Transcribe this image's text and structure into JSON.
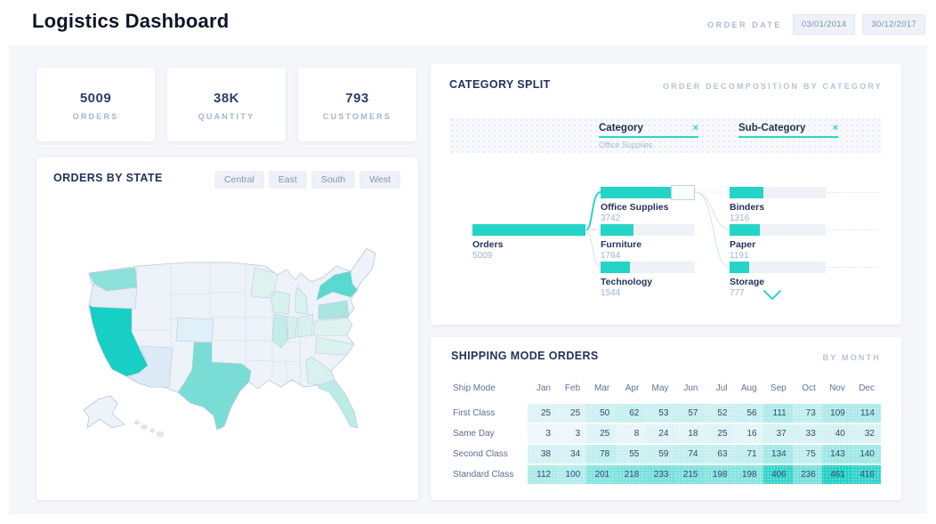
{
  "header": {
    "title": "Logistics Dashboard",
    "order_date_label": "ORDER DATE",
    "date_start": "03/01/2014",
    "date_end": "30/12/2017"
  },
  "kpis": [
    {
      "value": "5009",
      "label": "ORDERS"
    },
    {
      "value": "38K",
      "label": "QUANTITY"
    },
    {
      "value": "793",
      "label": "CUSTOMERS"
    }
  ],
  "orders_by_state": {
    "title": "ORDERS BY STATE",
    "region_filters": [
      "Central",
      "East",
      "South",
      "West"
    ],
    "map": {
      "base_fill": "#edf3f9",
      "border_color": "#b9c7dd",
      "states": [
        {
          "id": "WA",
          "name": "Washington",
          "fill": "#8ce1da"
        },
        {
          "id": "OR",
          "name": "Oregon",
          "fill": "#e4eef7"
        },
        {
          "id": "CA",
          "name": "California",
          "fill": "#17cfc4"
        },
        {
          "id": "AZ",
          "name": "Arizona",
          "fill": "#dcebf5"
        },
        {
          "id": "CO",
          "name": "Colorado",
          "fill": "#e0f0f8"
        },
        {
          "id": "TX",
          "name": "Texas",
          "fill": "#79ddd5"
        },
        {
          "id": "MN",
          "name": "Minnesota",
          "fill": "#def3f0"
        },
        {
          "id": "WI",
          "name": "Wisconsin",
          "fill": "#d7f1ee"
        },
        {
          "id": "MI",
          "name": "Michigan",
          "fill": "#d9f2ef"
        },
        {
          "id": "IL",
          "name": "Illinois",
          "fill": "#c4ede9"
        },
        {
          "id": "IN",
          "name": "Indiana",
          "fill": "#d5f0ed"
        },
        {
          "id": "OH",
          "name": "Ohio",
          "fill": "#d7f1ee"
        },
        {
          "id": "PA",
          "name": "Pennsylvania",
          "fill": "#a9e6e0"
        },
        {
          "id": "NY",
          "name": "New York",
          "fill": "#59d9d0"
        },
        {
          "id": "FL",
          "name": "Florida",
          "fill": "#bdece7"
        },
        {
          "id": "GA",
          "name": "Georgia",
          "fill": "#daf2ef"
        },
        {
          "id": "NC",
          "name": "North Carolina",
          "fill": "#dcf2ef"
        },
        {
          "id": "VA",
          "name": "Virginia",
          "fill": "#def2ef"
        }
      ]
    }
  },
  "category_split": {
    "title": "CATEGORY SPLIT",
    "subtitle": "ORDER DECOMPOSITION BY CATEGORY",
    "breadcrumb": [
      {
        "label": "Category",
        "selected_value": "Office Supplies",
        "close": "×"
      },
      {
        "label": "Sub-Category",
        "selected_value": "",
        "close": "×"
      }
    ],
    "tree": {
      "bar_color": "#24d4c6",
      "track_color": "#eef2f7",
      "root": {
        "label": "Orders",
        "value": 5009
      },
      "categories": [
        {
          "label": "Office Supplies",
          "value": 3742,
          "selected": true
        },
        {
          "label": "Furniture",
          "value": 1764,
          "selected": false
        },
        {
          "label": "Technology",
          "value": 1544,
          "selected": false
        }
      ],
      "subcategories": [
        {
          "label": "Binders",
          "value": 1316
        },
        {
          "label": "Paper",
          "value": 1191
        },
        {
          "label": "Storage",
          "value": 777
        }
      ]
    }
  },
  "shipping_modes": {
    "title": "SHIPPING MODE ORDERS",
    "subtitle": "BY MONTH",
    "chart_data": {
      "type": "heatmap",
      "row_header": "Ship Mode",
      "columns": [
        "Jan",
        "Feb",
        "Mar",
        "Apr",
        "May",
        "Jun",
        "Jul",
        "Aug",
        "Sep",
        "Oct",
        "Nov",
        "Dec"
      ],
      "rows": [
        {
          "label": "First Class",
          "values": [
            25,
            25,
            50,
            62,
            53,
            57,
            52,
            56,
            111,
            73,
            109,
            114
          ]
        },
        {
          "label": "Same Day",
          "values": [
            3,
            3,
            25,
            8,
            24,
            18,
            25,
            16,
            37,
            33,
            40,
            32
          ]
        },
        {
          "label": "Second Class",
          "values": [
            38,
            34,
            78,
            55,
            59,
            74,
            63,
            71,
            134,
            75,
            143,
            140
          ]
        },
        {
          "label": "Standard Class",
          "values": [
            112,
            100,
            201,
            218,
            233,
            215,
            198,
            198,
            406,
            236,
            461,
            416
          ]
        }
      ],
      "color_low": "#f2f7fb",
      "color_high": "#1fd0c5",
      "max": 461
    }
  }
}
